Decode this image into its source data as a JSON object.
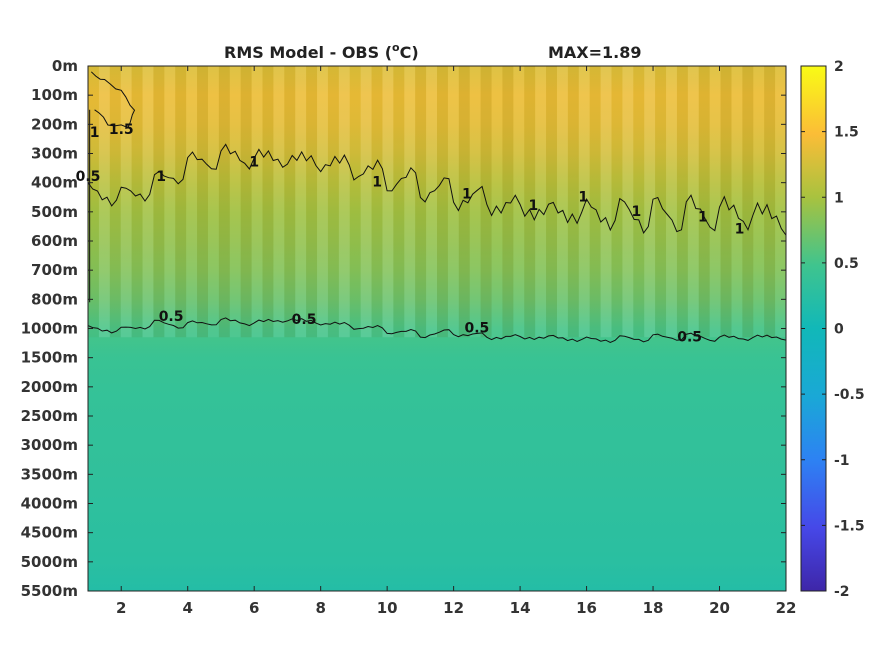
{
  "chart_data": {
    "type": "heatmap",
    "title": "RMS Model - OBS (",
    "title_unit": "o",
    "title_unit_suffix": "C)",
    "max_label": "MAX=1.89",
    "x_ticks": [
      2,
      4,
      6,
      8,
      10,
      12,
      14,
      16,
      18,
      20,
      22
    ],
    "x_range": [
      1,
      22
    ],
    "y_ticks": [
      "0m",
      "100m",
      "200m",
      "300m",
      "400m",
      "500m",
      "600m",
      "700m",
      "800m",
      "1000m",
      "1500m",
      "2000m",
      "2500m",
      "3000m",
      "3500m",
      "4000m",
      "4500m",
      "5000m",
      "5500m"
    ],
    "colorbar": {
      "range": [
        -2,
        2
      ],
      "ticks": [
        "2",
        "1.5",
        "1",
        "0.5",
        "0",
        "-0.5",
        "-1",
        "-1.5",
        "-2"
      ],
      "colormap": "parula"
    },
    "depth_profile": [
      {
        "depth": "0m",
        "value": 1.3
      },
      {
        "depth": "100m",
        "value": 1.4
      },
      {
        "depth": "200m",
        "value": 1.35
      },
      {
        "depth": "300m",
        "value": 1.25
      },
      {
        "depth": "400m",
        "value": 1.1
      },
      {
        "depth": "500m",
        "value": 0.97
      },
      {
        "depth": "600m",
        "value": 0.9
      },
      {
        "depth": "700m",
        "value": 0.82
      },
      {
        "depth": "800m",
        "value": 0.7
      },
      {
        "depth": "1000m",
        "value": 0.52
      },
      {
        "depth": "1500m",
        "value": 0.42
      },
      {
        "depth": "2000m",
        "value": 0.38
      },
      {
        "depth": "2500m",
        "value": 0.36
      },
      {
        "depth": "3000m",
        "value": 0.34
      },
      {
        "depth": "3500m",
        "value": 0.33
      },
      {
        "depth": "4000m",
        "value": 0.3
      },
      {
        "depth": "4500m",
        "value": 0.28
      },
      {
        "depth": "5000m",
        "value": 0.26
      },
      {
        "depth": "5500m",
        "value": 0.2
      }
    ],
    "contours": [
      {
        "level": "1",
        "x": [
          1,
          2,
          3,
          4,
          5,
          6,
          7,
          8,
          9,
          10,
          11,
          12,
          13,
          14,
          15,
          16,
          17,
          18,
          19,
          20,
          21,
          22
        ],
        "depth_index": [
          4.0,
          4.3,
          4.0,
          3.5,
          3.3,
          3.5,
          3.6,
          3.7,
          3.8,
          4.0,
          4.1,
          4.2,
          4.3,
          4.4,
          4.5,
          4.6,
          4.8,
          5.0,
          5.2,
          5.4,
          5.6,
          5.8
        ]
      },
      {
        "level": "0.5",
        "x": [
          1,
          2,
          3,
          4,
          5,
          6,
          7,
          8,
          9,
          10,
          11,
          12,
          13,
          14,
          15,
          16,
          17,
          18,
          19,
          20,
          21,
          22
        ],
        "depth_index": [
          8.9,
          9.0,
          8.8,
          8.9,
          8.8,
          8.9,
          8.8,
          8.9,
          9.0,
          9.1,
          9.2,
          9.1,
          9.2,
          9.2,
          9.2,
          9.3,
          9.3,
          9.3,
          9.3,
          9.4,
          9.4,
          9.4
        ]
      },
      {
        "level": "1.5",
        "x": [
          1.1,
          1.5,
          2.0,
          2.4,
          2.2,
          1.6,
          1.2
        ],
        "depth_index": [
          0.2,
          0.5,
          0.9,
          1.6,
          2.2,
          2.1,
          1.5
        ]
      }
    ],
    "contour_labels": [
      {
        "text": "1.5",
        "x": 2.0,
        "depth_index": 2.2
      },
      {
        "text": "1",
        "x": 1.2,
        "depth_index": 2.3
      },
      {
        "text": "0.5",
        "x": 1.0,
        "depth_index": 3.8
      },
      {
        "text": "1",
        "x": 3.2,
        "depth_index": 3.8
      },
      {
        "text": "1",
        "x": 6.0,
        "depth_index": 3.3
      },
      {
        "text": "1",
        "x": 9.7,
        "depth_index": 4.0
      },
      {
        "text": "1",
        "x": 12.4,
        "depth_index": 4.4
      },
      {
        "text": "1",
        "x": 14.4,
        "depth_index": 4.8
      },
      {
        "text": "1",
        "x": 15.9,
        "depth_index": 4.5
      },
      {
        "text": "1",
        "x": 17.5,
        "depth_index": 5.0
      },
      {
        "text": "1",
        "x": 19.5,
        "depth_index": 5.2
      },
      {
        "text": "1",
        "x": 20.6,
        "depth_index": 5.6
      },
      {
        "text": "0.5",
        "x": 3.5,
        "depth_index": 8.6
      },
      {
        "text": "0.5",
        "x": 7.5,
        "depth_index": 8.7
      },
      {
        "text": "0.5",
        "x": 12.7,
        "depth_index": 9.0
      },
      {
        "text": "0.5",
        "x": 19.1,
        "depth_index": 9.3
      }
    ],
    "grid": false
  }
}
